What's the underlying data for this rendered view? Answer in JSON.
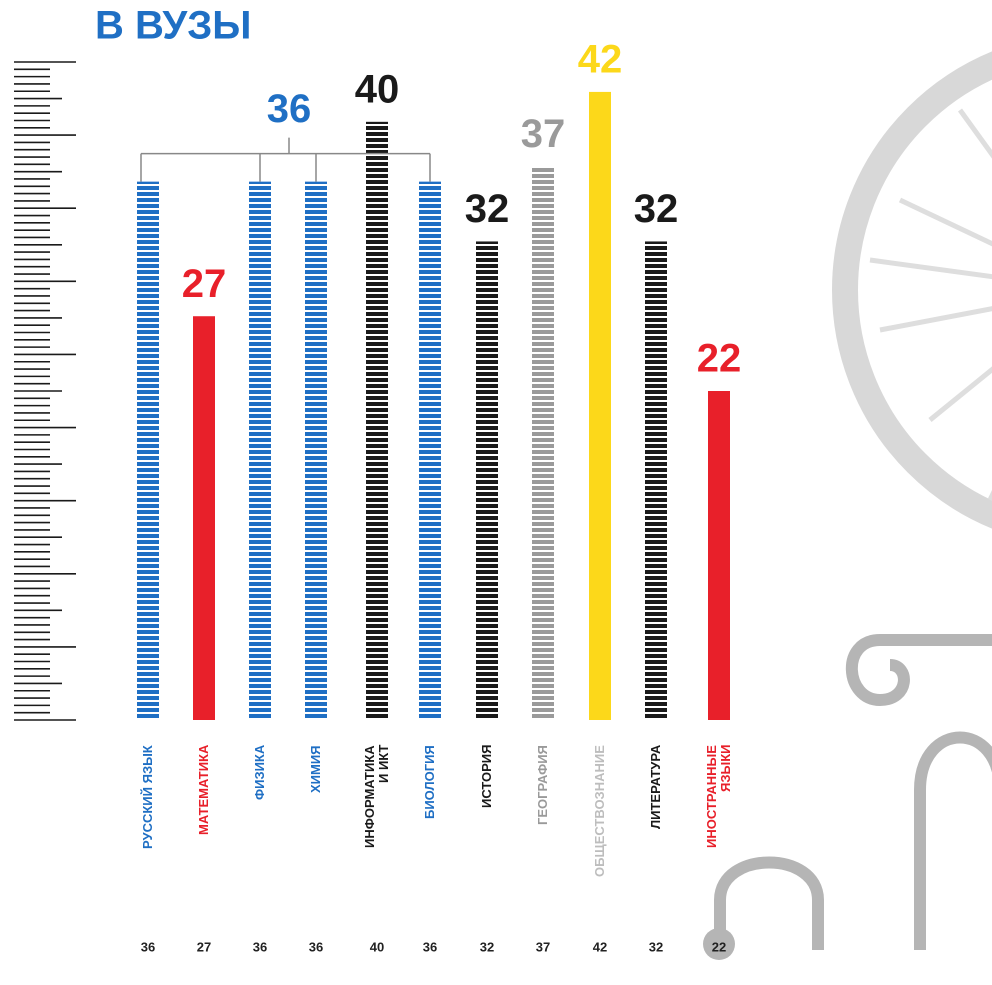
{
  "chart_data": {
    "type": "bar",
    "title": "В ВУЗЫ",
    "categories": [
      "РУССКИЙ ЯЗЫК",
      "МАТЕМАТИКА",
      "ФИЗИКА",
      "ХИМИЯ",
      "ИНФОРМАТИКА\nИ ИКТ",
      "БИОЛОГИЯ",
      "ИСТОРИЯ",
      "ГЕОГРАФИЯ",
      "ОБЩЕСТВОЗНАНИЕ",
      "ЛИТЕРАТУРА",
      "ИНОСТРАННЫЕ\nЯЗЫКИ"
    ],
    "values": [
      36,
      27,
      36,
      36,
      40,
      36,
      32,
      37,
      42,
      32,
      22
    ],
    "colors": [
      "#1f6fc4",
      "#e8202a",
      "#1f6fc4",
      "#1f6fc4",
      "#1a1a1a",
      "#1f6fc4",
      "#1a1a1a",
      "#9a9a9a",
      "#fcd81a",
      "#1a1a1a",
      "#e8202a"
    ],
    "label_colors": [
      "#1f6fc4",
      "#e8202a",
      "#1f6fc4",
      "#1f6fc4",
      "#1a1a1a",
      "#1f6fc4",
      "#1a1a1a",
      "#9a9a9a",
      "#bdbdbd",
      "#1a1a1a",
      "#e8202a"
    ],
    "striped": [
      true,
      false,
      true,
      true,
      true,
      true,
      true,
      true,
      false,
      true,
      false
    ],
    "ylim": [
      0,
      44
    ]
  }
}
